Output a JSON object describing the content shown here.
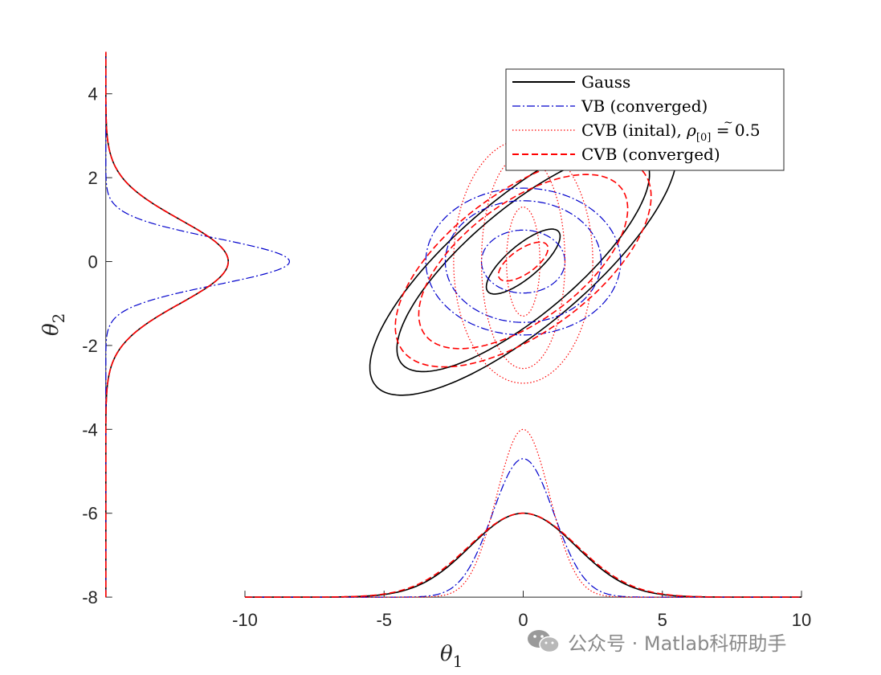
{
  "chart_data": {
    "type": "line",
    "xlabel": "θ",
    "xlabel_subscript": "1",
    "ylabel": "θ",
    "ylabel_subscript": "2",
    "xlim": [
      -10,
      10
    ],
    "ylim": [
      -8,
      5
    ],
    "x_ticks": [
      -10,
      -5,
      0,
      5,
      10
    ],
    "y_ticks": [
      4,
      2,
      0,
      -2,
      -4,
      -6,
      -8
    ],
    "x_tick_labels": [
      "-10",
      "-5",
      "0",
      "5",
      "10"
    ],
    "y_tick_labels": [
      "4",
      "2",
      "0",
      "-2",
      "-4",
      "-6",
      "-8"
    ],
    "grid": false,
    "legend_position": "top-right",
    "series": [
      {
        "name": "Gauss",
        "color": "#000000",
        "style": "solid",
        "contours": [
          {
            "cx": 0,
            "cy": 0,
            "sx": 1.47,
            "sy": 0.44,
            "angle_deg": 27
          },
          {
            "cx": 0,
            "cy": 0,
            "sx": 5.04,
            "sy": 1.44,
            "angle_deg": 27
          },
          {
            "cx": 0,
            "cy": 0,
            "sx": 6.12,
            "sy": 1.75,
            "angle_deg": 27
          }
        ],
        "marginal_x": {
          "mean": 0,
          "sd": 1.9,
          "peak": 2.0
        },
        "marginal_y": {
          "mean": 0,
          "sd": 1.0,
          "peak": 4.4
        }
      },
      {
        "name": "VB (converged)",
        "color": "#0000cc",
        "style": "dashdot",
        "contours": [
          {
            "cx": 0,
            "cy": 0,
            "sx": 1.5,
            "sy": 0.75,
            "angle_deg": 0
          },
          {
            "cx": 0,
            "cy": 0,
            "sx": 2.8,
            "sy": 1.45,
            "angle_deg": 0
          },
          {
            "cx": 0,
            "cy": 0,
            "sx": 3.5,
            "sy": 1.75,
            "angle_deg": 0
          }
        ],
        "marginal_x": {
          "mean": 0,
          "sd": 1.1,
          "peak": 3.3
        },
        "marginal_y": {
          "mean": 0,
          "sd": 0.55,
          "peak": 6.6
        }
      },
      {
        "name": "CVB (inital), $\\tilde{\\rho_{[0]}} = 0.5$",
        "legend_main": "CVB (inital), ",
        "legend_rho": "ρ",
        "legend_sub": "[0]",
        "legend_rest": " = 0.5",
        "color": "#ff0000",
        "style": "dotted",
        "contours": [
          {
            "cx": 0,
            "cy": 0,
            "sx": 0.6,
            "sy": 1.3,
            "angle_deg": 0
          },
          {
            "cx": 0,
            "cy": 0,
            "sx": 1.5,
            "sy": 2.55,
            "angle_deg": 0
          },
          {
            "cx": 0,
            "cy": 0,
            "sx": 2.5,
            "sy": 2.9,
            "angle_deg": 0
          }
        ],
        "marginal_x": {
          "mean": 0,
          "sd": 0.95,
          "peak": 4.0
        },
        "marginal_y": {
          "mean": 0,
          "sd": 1.0,
          "peak": 4.4
        }
      },
      {
        "name": "CVB (converged)",
        "color": "#ff0000",
        "style": "dashed",
        "contours": [
          {
            "cx": 0,
            "cy": 0,
            "sx": 0.95,
            "sy": 0.32,
            "angle_deg": 22
          },
          {
            "cx": 0,
            "cy": 0,
            "sx": 4.0,
            "sy": 1.55,
            "angle_deg": 22
          },
          {
            "cx": 0,
            "cy": 0,
            "sx": 4.9,
            "sy": 1.85,
            "angle_deg": 22
          }
        ],
        "marginal_x": {
          "mean": 0,
          "sd": 1.95,
          "peak": 2.0
        },
        "marginal_y": {
          "mean": 0,
          "sd": 1.0,
          "peak": 4.4
        }
      }
    ],
    "marginal_axes": {
      "x_baseline": -8,
      "y_baseline": -15
    }
  },
  "watermark": {
    "text": "公众号 · Matlab科研助手",
    "icon": "wechat-icon"
  }
}
